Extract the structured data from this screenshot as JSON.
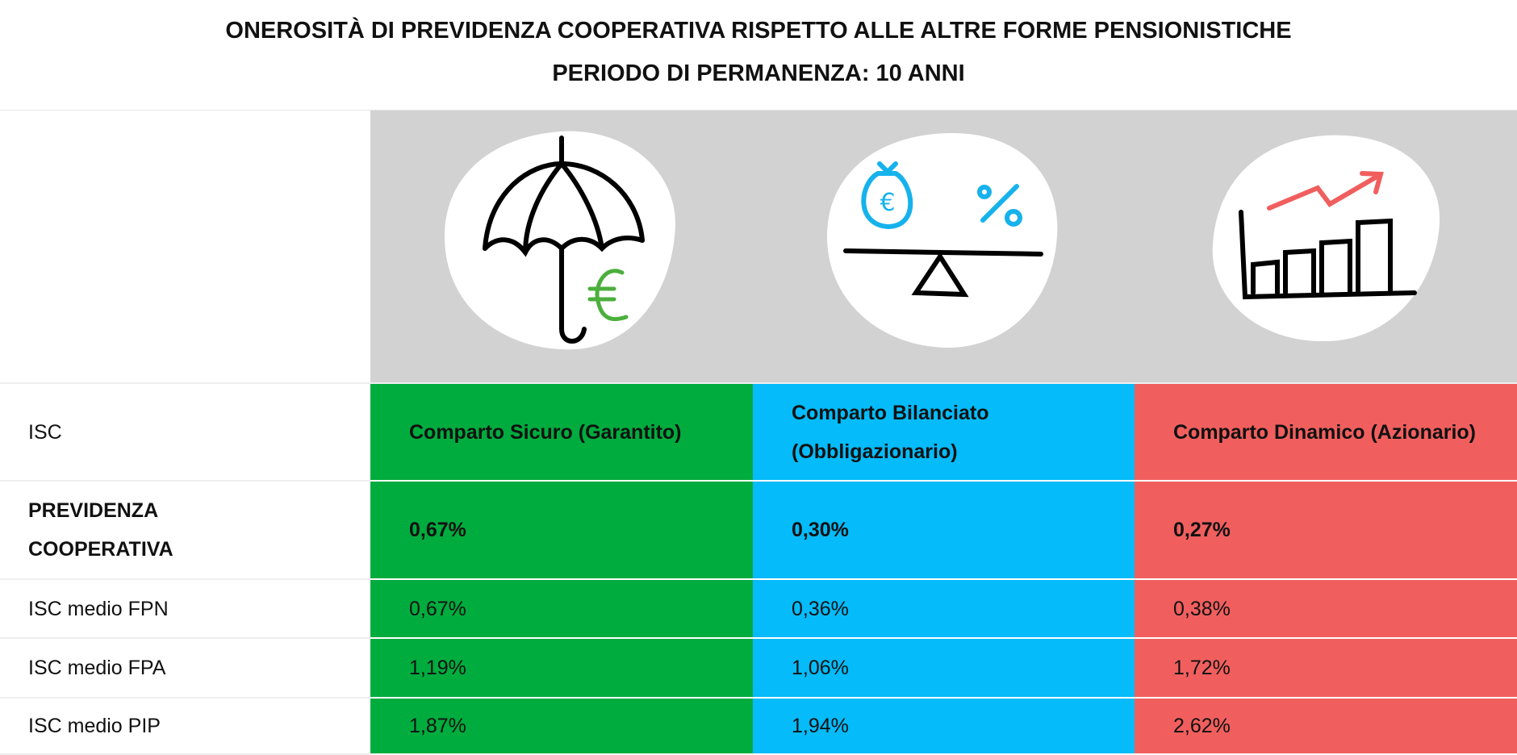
{
  "header": {
    "title": [
      "ONEROSITÀ DI PREVIDENZA COOPERATIVA RISPETTO ALLE ALTRE FORME PENSIONISTICHE",
      "PERIODO DI PERMANENZA: 10 ANNI"
    ]
  },
  "table": {
    "header": [
      "ISC",
      "Comparto Sicuro (Garantito)",
      "Comparto Bilanciato (Obbligazionario)",
      "Comparto Dinamico (Azionario)"
    ],
    "rows": [
      [
        "PREVIDENZA COOPERATIVA",
        "0,67%",
        "0,30%",
        "0,27%"
      ],
      [
        "ISC medio FPN",
        "0,67%",
        "0,36%",
        "0,38%"
      ],
      [
        "ISC medio FPA",
        "1,19%",
        "1,06%",
        "1,72%"
      ],
      [
        "ISC medio PIP",
        "1,87%",
        "1,94%",
        "2,62%"
      ]
    ]
  }
}
